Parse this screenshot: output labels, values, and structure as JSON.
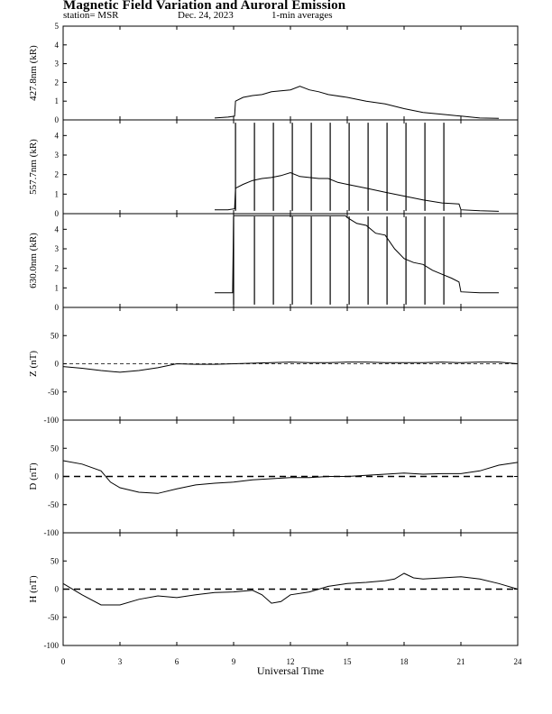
{
  "header": {
    "title": "Magnetic Field Variation and Auroral Emission",
    "station": "station= MSR",
    "date": "Dec. 24, 2023",
    "avg": "1-min averages"
  },
  "chart_data": {
    "type": "line",
    "x_label": "Universal Time",
    "x_range": [
      0,
      24
    ],
    "x_ticks": [
      0,
      3,
      6,
      9,
      12,
      15,
      18,
      21,
      24
    ],
    "panels": [
      {
        "ylabel": "427.8nm (kR)",
        "ylim": [
          0,
          5
        ],
        "yticks": [
          0,
          1,
          2,
          3,
          4,
          5
        ],
        "points": [
          [
            8.0,
            0.1
          ],
          [
            8.7,
            0.15
          ],
          [
            9.05,
            0.2
          ],
          [
            9.1,
            1.0
          ],
          [
            9.5,
            1.2
          ],
          [
            10.0,
            1.3
          ],
          [
            10.5,
            1.35
          ],
          [
            11.0,
            1.5
          ],
          [
            11.5,
            1.55
          ],
          [
            12.0,
            1.6
          ],
          [
            12.5,
            1.8
          ],
          [
            13.0,
            1.6
          ],
          [
            13.5,
            1.5
          ],
          [
            14.0,
            1.35
          ],
          [
            15.0,
            1.2
          ],
          [
            16.0,
            1.0
          ],
          [
            17.0,
            0.85
          ],
          [
            18.0,
            0.6
          ],
          [
            19.0,
            0.4
          ],
          [
            20.0,
            0.3
          ],
          [
            21.0,
            0.2
          ],
          [
            22.0,
            0.1
          ],
          [
            23.0,
            0.08
          ]
        ],
        "spikes": []
      },
      {
        "ylabel": "557.7nm (kR)",
        "ylim": [
          0,
          4.8
        ],
        "yticks": [
          0,
          1,
          2,
          3,
          4
        ],
        "points": [
          [
            8.0,
            0.2
          ],
          [
            8.7,
            0.2
          ],
          [
            9.05,
            0.25
          ],
          [
            9.1,
            1.3
          ],
          [
            9.5,
            1.5
          ],
          [
            10.0,
            1.7
          ],
          [
            10.5,
            1.8
          ],
          [
            11.0,
            1.85
          ],
          [
            11.5,
            1.95
          ],
          [
            12.0,
            2.1
          ],
          [
            12.5,
            1.9
          ],
          [
            13.0,
            1.85
          ],
          [
            13.5,
            1.8
          ],
          [
            14.0,
            1.8
          ],
          [
            14.5,
            1.6
          ],
          [
            15.0,
            1.5
          ],
          [
            16.0,
            1.3
          ],
          [
            17.0,
            1.1
          ],
          [
            18.0,
            0.9
          ],
          [
            19.0,
            0.7
          ],
          [
            20.0,
            0.55
          ],
          [
            20.9,
            0.5
          ],
          [
            21.0,
            0.2
          ],
          [
            22.0,
            0.15
          ],
          [
            23.0,
            0.12
          ]
        ],
        "spikes": [
          9.1,
          10.1,
          11.1,
          12.1,
          13.1,
          14.1,
          15.1,
          16.1,
          17.1,
          18.1,
          19.1,
          20.1
        ]
      },
      {
        "ylabel": "630.0nm (kR)",
        "ylim": [
          0,
          4.8
        ],
        "yticks": [
          0,
          1,
          2,
          3,
          4
        ],
        "points": [
          [
            8.0,
            0.75
          ],
          [
            8.95,
            0.75
          ],
          [
            9.0,
            4.7
          ],
          [
            14.9,
            4.7
          ],
          [
            15.0,
            4.6
          ],
          [
            15.5,
            4.3
          ],
          [
            16.0,
            4.2
          ],
          [
            16.5,
            3.8
          ],
          [
            17.0,
            3.7
          ],
          [
            17.5,
            3.0
          ],
          [
            18.0,
            2.5
          ],
          [
            18.5,
            2.3
          ],
          [
            19.0,
            2.2
          ],
          [
            19.5,
            1.9
          ],
          [
            20.0,
            1.7
          ],
          [
            20.5,
            1.5
          ],
          [
            20.9,
            1.3
          ],
          [
            21.0,
            0.8
          ],
          [
            22.0,
            0.75
          ],
          [
            23.0,
            0.75
          ]
        ],
        "spikes": [
          9.0,
          10.1,
          11.1,
          12.1,
          13.1,
          14.1,
          15.1,
          16.1,
          17.1,
          18.1,
          19.1,
          20.1
        ]
      },
      {
        "ylabel": "Z (nT)",
        "ylim": [
          -100,
          100
        ],
        "yticks": [
          -100,
          -50,
          0,
          50
        ],
        "zero_line": "thin-dashed",
        "points": [
          [
            0,
            -5
          ],
          [
            1,
            -8
          ],
          [
            2,
            -12
          ],
          [
            3,
            -15
          ],
          [
            4,
            -12
          ],
          [
            5,
            -7
          ],
          [
            6,
            0
          ],
          [
            7,
            -1
          ],
          [
            8,
            -1
          ],
          [
            9,
            0
          ],
          [
            10,
            1
          ],
          [
            11,
            2
          ],
          [
            12,
            3
          ],
          [
            13,
            2
          ],
          [
            14,
            2
          ],
          [
            15,
            3
          ],
          [
            16,
            3
          ],
          [
            17,
            2
          ],
          [
            18,
            2
          ],
          [
            19,
            2
          ],
          [
            20,
            3
          ],
          [
            21,
            2
          ],
          [
            22,
            3
          ],
          [
            23,
            3
          ],
          [
            24,
            0
          ]
        ]
      },
      {
        "ylabel": "D (nT)",
        "ylim": [
          -100,
          100
        ],
        "yticks": [
          -100,
          -50,
          0,
          50
        ],
        "zero_line": "thick-dashed",
        "points": [
          [
            0,
            28
          ],
          [
            1,
            22
          ],
          [
            2,
            10
          ],
          [
            2.5,
            -10
          ],
          [
            3,
            -20
          ],
          [
            4,
            -28
          ],
          [
            5,
            -30
          ],
          [
            6,
            -22
          ],
          [
            7,
            -15
          ],
          [
            8,
            -12
          ],
          [
            9,
            -10
          ],
          [
            10,
            -6
          ],
          [
            11,
            -4
          ],
          [
            12,
            -2
          ],
          [
            13,
            -2
          ],
          [
            14,
            0
          ],
          [
            15,
            0
          ],
          [
            16,
            2
          ],
          [
            17,
            4
          ],
          [
            18,
            6
          ],
          [
            19,
            4
          ],
          [
            20,
            5
          ],
          [
            21,
            5
          ],
          [
            22,
            10
          ],
          [
            23,
            20
          ],
          [
            24,
            25
          ]
        ]
      },
      {
        "ylabel": "H (nT)",
        "ylim": [
          -100,
          100
        ],
        "yticks": [
          -100,
          -50,
          0,
          50
        ],
        "zero_line": "thick-dashed",
        "points": [
          [
            0,
            10
          ],
          [
            1,
            -10
          ],
          [
            2,
            -28
          ],
          [
            3,
            -28
          ],
          [
            4,
            -18
          ],
          [
            5,
            -12
          ],
          [
            6,
            -15
          ],
          [
            7,
            -10
          ],
          [
            8,
            -6
          ],
          [
            9,
            -5
          ],
          [
            10,
            -2
          ],
          [
            10.5,
            -10
          ],
          [
            11,
            -25
          ],
          [
            11.5,
            -22
          ],
          [
            12,
            -10
          ],
          [
            13,
            -5
          ],
          [
            14,
            5
          ],
          [
            15,
            10
          ],
          [
            16,
            12
          ],
          [
            17,
            15
          ],
          [
            17.5,
            18
          ],
          [
            18,
            28
          ],
          [
            18.5,
            20
          ],
          [
            19,
            18
          ],
          [
            20,
            20
          ],
          [
            21,
            22
          ],
          [
            22,
            18
          ],
          [
            23,
            10
          ],
          [
            24,
            0
          ]
        ]
      }
    ]
  }
}
